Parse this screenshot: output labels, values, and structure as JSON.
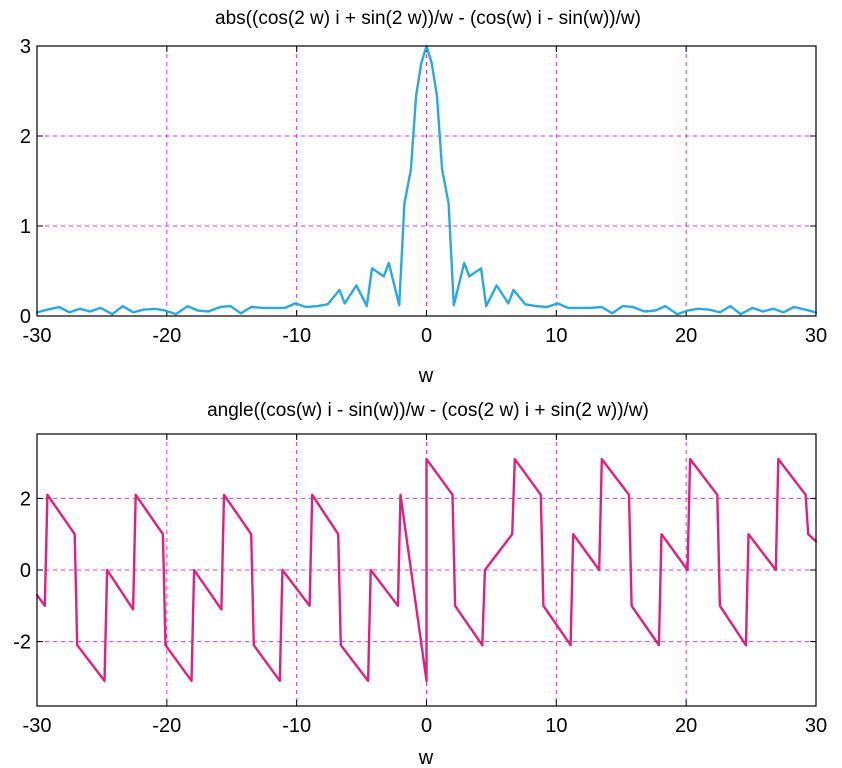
{
  "chart_data": [
    {
      "type": "line",
      "title": "abs((cos(2 w) i + sin(2 w))/w - (cos(w) i - sin(w))/w)",
      "xlabel": "w",
      "ylabel": "",
      "xlim": [
        -30,
        30
      ],
      "ylim": [
        0,
        3
      ],
      "xticks": [
        -30,
        -20,
        -10,
        0,
        10,
        20,
        30
      ],
      "yticks": [
        0,
        1,
        2,
        3
      ],
      "grid": true,
      "series": [
        {
          "color": "#2aa9e0",
          "x": [
            -30,
            -29.2,
            -28.3,
            -27.5,
            -26.7,
            -25.9,
            -25.1,
            -24.2,
            -23.4,
            -22.6,
            -21.8,
            -20.9,
            -20.1,
            -19.3,
            -18.4,
            -17.6,
            -16.8,
            -15.9,
            -15.1,
            -14.3,
            -13.5,
            -12.6,
            -11.8,
            -10.9,
            -10.1,
            -9.3,
            -8.4,
            -7.6,
            -6.7,
            -6.3,
            -5.4,
            -4.6,
            -4.2,
            -3.3,
            -2.9,
            -2.1,
            -1.7,
            -1.2,
            -0.8,
            -0.4,
            0,
            0.4,
            0.8,
            1.2,
            1.7,
            2.1,
            2.9,
            3.3,
            4.2,
            4.6,
            5.4,
            6.3,
            6.7,
            7.6,
            8.4,
            9.3,
            10.1,
            10.9,
            11.8,
            12.6,
            13.5,
            14.3,
            15.1,
            15.9,
            16.8,
            17.6,
            18.4,
            19.3,
            20.1,
            20.9,
            21.8,
            22.6,
            23.4,
            24.2,
            25.1,
            25.9,
            26.7,
            27.5,
            28.3,
            29.2,
            30
          ],
          "y": [
            0.04,
            0.07,
            0.1,
            0.04,
            0.08,
            0.05,
            0.09,
            0.02,
            0.11,
            0.04,
            0.07,
            0.08,
            0.06,
            0.02,
            0.11,
            0.06,
            0.05,
            0.1,
            0.11,
            0.03,
            0.1,
            0.09,
            0.09,
            0.09,
            0.14,
            0.1,
            0.11,
            0.13,
            0.29,
            0.14,
            0.34,
            0.11,
            0.53,
            0.44,
            0.59,
            0.12,
            1.25,
            1.63,
            2.45,
            2.81,
            3.0,
            2.81,
            2.45,
            1.63,
            1.25,
            0.12,
            0.59,
            0.44,
            0.53,
            0.11,
            0.34,
            0.14,
            0.29,
            0.13,
            0.11,
            0.1,
            0.14,
            0.09,
            0.09,
            0.09,
            0.1,
            0.03,
            0.11,
            0.1,
            0.05,
            0.06,
            0.11,
            0.02,
            0.06,
            0.08,
            0.07,
            0.04,
            0.11,
            0.02,
            0.09,
            0.05,
            0.08,
            0.04,
            0.1,
            0.07,
            0.04
          ]
        }
      ]
    },
    {
      "type": "line",
      "title": "angle((cos(w) i - sin(w))/w - (cos(2 w) i + sin(2 w))/w)",
      "xlabel": "w",
      "ylabel": "",
      "xlim": [
        -30,
        30
      ],
      "ylim": [
        -3.8,
        3.8
      ],
      "xticks": [
        -30,
        -20,
        -10,
        0,
        10,
        20,
        30
      ],
      "yticks": [
        -2,
        0,
        2
      ],
      "grid": true,
      "series": [
        {
          "color": "#e0207f",
          "x": [
            -30,
            -29.4,
            -29.2,
            -27.1,
            -26.9,
            -24.8,
            -24.6,
            -22.6,
            -22.4,
            -20.3,
            -20.1,
            -18.1,
            -17.9,
            -15.8,
            -15.6,
            -13.5,
            -13.3,
            -11.3,
            -11.1,
            -9,
            -8.8,
            -6.8,
            -6.6,
            -4.5,
            -4.3,
            -2.2,
            -2.0,
            0,
            0,
            2.0,
            2.2,
            4.3,
            4.5,
            6.6,
            6.8,
            8.8,
            9.0,
            11.1,
            11.3,
            13.3,
            13.5,
            15.6,
            15.8,
            17.9,
            18.1,
            20.1,
            20.3,
            22.4,
            22.6,
            24.6,
            24.8,
            26.9,
            27.1,
            29.2,
            29.4,
            30
          ],
          "y": [
            -0.7,
            -1.0,
            2.1,
            1.0,
            -2.1,
            -3.1,
            0.0,
            -1.1,
            2.1,
            1.0,
            -2.1,
            -3.1,
            0.0,
            -1.1,
            2.1,
            1.0,
            -2.1,
            -3.1,
            0.0,
            -1.0,
            2.1,
            1.0,
            -2.1,
            -3.1,
            0.0,
            -1.0,
            2.1,
            -3.1,
            3.1,
            2.1,
            -1.0,
            -2.1,
            0.0,
            1.0,
            3.1,
            2.1,
            -1.0,
            -2.1,
            1.0,
            0.0,
            3.1,
            2.1,
            -1.0,
            -2.1,
            1.0,
            0.0,
            3.1,
            2.1,
            -1.0,
            -2.1,
            1.0,
            0.0,
            3.1,
            2.1,
            1.0,
            0.8
          ]
        }
      ]
    }
  ]
}
